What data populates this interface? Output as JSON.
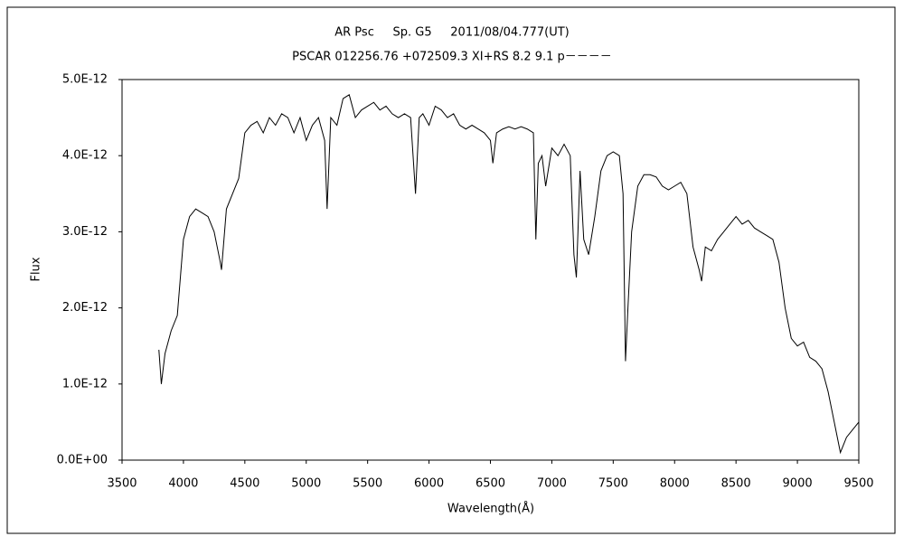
{
  "chart_data": {
    "type": "line",
    "title": "AR Psc     Sp. G5     2011/08/04.777(UT)",
    "subtitle": "PSCAR 012256.76 +072509.3 XI+RS 8.2 9.1 p－－－－",
    "x_label": "Wavelength(Å)",
    "y_label": "Flux",
    "x": [
      3800,
      3820,
      3850,
      3900,
      3950,
      4000,
      4050,
      4100,
      4150,
      4200,
      4250,
      4300,
      4310,
      4350,
      4400,
      4450,
      4500,
      4550,
      4600,
      4650,
      4700,
      4750,
      4800,
      4850,
      4900,
      4950,
      5000,
      5050,
      5100,
      5150,
      5170,
      5200,
      5250,
      5300,
      5350,
      5400,
      5450,
      5500,
      5550,
      5600,
      5650,
      5700,
      5750,
      5800,
      5850,
      5890,
      5920,
      5950,
      6000,
      6050,
      6100,
      6150,
      6200,
      6250,
      6300,
      6350,
      6400,
      6450,
      6500,
      6520,
      6550,
      6600,
      6650,
      6700,
      6750,
      6800,
      6850,
      6870,
      6890,
      6920,
      6950,
      7000,
      7050,
      7100,
      7150,
      7180,
      7200,
      7230,
      7260,
      7300,
      7350,
      7400,
      7450,
      7500,
      7550,
      7580,
      7600,
      7620,
      7650,
      7700,
      7750,
      7800,
      7850,
      7900,
      7950,
      8000,
      8050,
      8100,
      8150,
      8200,
      8220,
      8250,
      8300,
      8350,
      8400,
      8450,
      8500,
      8550,
      8600,
      8650,
      8700,
      8750,
      8800,
      8850,
      8900,
      8950,
      9000,
      9050,
      9100,
      9150,
      9200,
      9250,
      9300,
      9350,
      9400,
      9450,
      9500
    ],
    "series": [
      {
        "color": "#000000",
        "values": [
          1.45e-12,
          1e-12,
          1.4e-12,
          1.7e-12,
          1.9e-12,
          2.9e-12,
          3.2e-12,
          3.3e-12,
          3.25e-12,
          3.2e-12,
          3e-12,
          2.6e-12,
          2.5e-12,
          3.3e-12,
          3.5e-12,
          3.7e-12,
          4.3e-12,
          4.4e-12,
          4.45e-12,
          4.3e-12,
          4.5e-12,
          4.4e-12,
          4.55e-12,
          4.5e-12,
          4.3e-12,
          4.5e-12,
          4.2e-12,
          4.4e-12,
          4.5e-12,
          4.2e-12,
          3.3e-12,
          4.5e-12,
          4.4e-12,
          4.75e-12,
          4.8e-12,
          4.5e-12,
          4.6e-12,
          4.65e-12,
          4.7e-12,
          4.6e-12,
          4.65e-12,
          4.55e-12,
          4.5e-12,
          4.55e-12,
          4.5e-12,
          3.5e-12,
          4.5e-12,
          4.55e-12,
          4.4e-12,
          4.65e-12,
          4.6e-12,
          4.5e-12,
          4.55e-12,
          4.4e-12,
          4.35e-12,
          4.4e-12,
          4.35e-12,
          4.3e-12,
          4.2e-12,
          3.9e-12,
          4.3e-12,
          4.35e-12,
          4.38e-12,
          4.35e-12,
          4.38e-12,
          4.35e-12,
          4.3e-12,
          2.9e-12,
          3.9e-12,
          4e-12,
          3.6e-12,
          4.1e-12,
          4e-12,
          4.15e-12,
          4e-12,
          2.7e-12,
          2.4e-12,
          3.8e-12,
          2.9e-12,
          2.7e-12,
          3.2e-12,
          3.8e-12,
          4e-12,
          4.05e-12,
          4e-12,
          3.5e-12,
          1.3e-12,
          2e-12,
          3e-12,
          3.6e-12,
          3.75e-12,
          3.75e-12,
          3.72e-12,
          3.6e-12,
          3.55e-12,
          3.6e-12,
          3.65e-12,
          3.5e-12,
          2.8e-12,
          2.5e-12,
          2.35e-12,
          2.8e-12,
          2.75e-12,
          2.9e-12,
          3e-12,
          3.1e-12,
          3.2e-12,
          3.1e-12,
          3.15e-12,
          3.05e-12,
          3e-12,
          2.95e-12,
          2.9e-12,
          2.6e-12,
          2e-12,
          1.6e-12,
          1.5e-12,
          1.55e-12,
          1.35e-12,
          1.3e-12,
          1.2e-12,
          9e-13,
          5e-13,
          1e-13,
          3e-13,
          4e-13,
          5e-13
        ]
      }
    ],
    "xlim": [
      3500,
      9500
    ],
    "xticks": [
      3500,
      4000,
      4500,
      5000,
      5500,
      6000,
      6500,
      7000,
      7500,
      8000,
      8500,
      9000,
      9500
    ],
    "ylim": [
      0,
      5e-12
    ],
    "yticks": [
      {
        "value": 0,
        "label": "0.0E+00"
      },
      {
        "value": 1e-12,
        "label": "1.0E-12"
      },
      {
        "value": 2e-12,
        "label": "2.0E-12"
      },
      {
        "value": 3e-12,
        "label": "3.0E-12"
      },
      {
        "value": 4e-12,
        "label": "4.0E-12"
      },
      {
        "value": 5e-12,
        "label": "5.0E-12"
      }
    ]
  }
}
